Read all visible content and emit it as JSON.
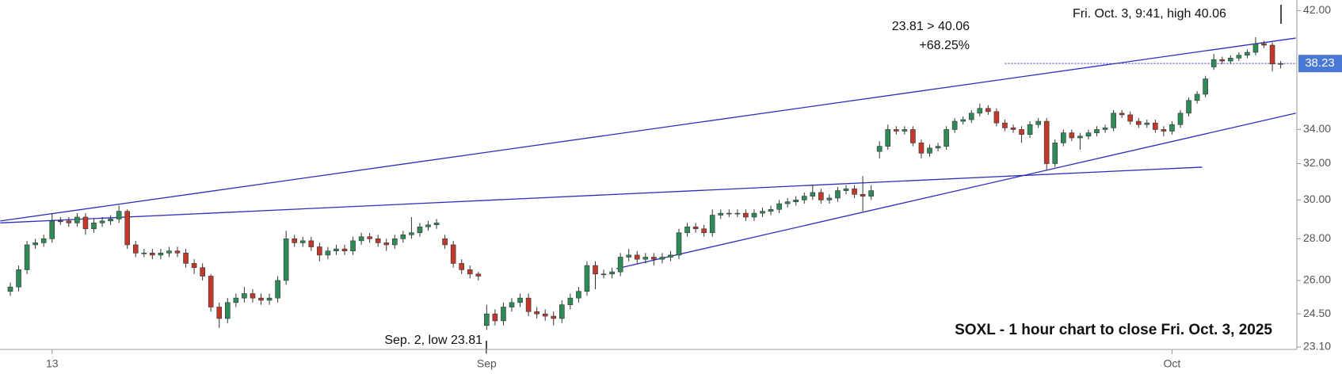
{
  "chart_data": {
    "type": "candlestick",
    "title": "SOXL - 1 hour chart to close Fri. Oct. 3, 2025",
    "log_scale": true,
    "up_color": "#2e8b57",
    "down_color": "#c0392b",
    "line_color": "#2d2dbd",
    "categories": [
      null,
      null,
      null,
      null,
      null,
      "13",
      null,
      null,
      null,
      null,
      null,
      null,
      null,
      null,
      null,
      null,
      null,
      null,
      null,
      null,
      null,
      null,
      null,
      null,
      null,
      null,
      null,
      null,
      null,
      null,
      null,
      null,
      null,
      null,
      null,
      null,
      null,
      null,
      null,
      null,
      null,
      null,
      null,
      null,
      null,
      null,
      null,
      null,
      null,
      null,
      null,
      null,
      null,
      null,
      null,
      null,
      null,
      "Sep",
      null,
      null,
      null,
      null,
      null,
      null,
      null,
      null,
      null,
      null,
      null,
      null,
      null,
      null,
      null,
      null,
      null,
      null,
      null,
      null,
      null,
      null,
      null,
      null,
      null,
      null,
      null,
      null,
      null,
      null,
      null,
      null,
      null,
      null,
      null,
      null,
      null,
      null,
      null,
      null,
      null,
      null,
      null,
      null,
      null,
      null,
      null,
      null,
      null,
      null,
      null,
      null,
      null,
      null,
      null,
      null,
      null,
      null,
      null,
      null,
      null,
      null,
      null,
      null,
      null,
      null,
      null,
      null,
      null,
      null,
      null,
      null,
      null,
      null,
      null,
      null,
      null,
      null,
      null,
      null,
      null,
      "Oct",
      null,
      null,
      null,
      null,
      null,
      null,
      null,
      null,
      null,
      null,
      null,
      null,
      null
    ],
    "open": [
      25.5,
      25.7,
      26.5,
      27.7,
      27.8,
      28.0,
      28.9,
      28.9,
      28.8,
      29.1,
      28.5,
      28.8,
      28.9,
      29.0,
      29.4,
      27.7,
      27.3,
      27.3,
      27.2,
      27.3,
      27.4,
      27.3,
      26.8,
      26.6,
      26.2,
      24.8,
      24.3,
      25.0,
      25.2,
      25.4,
      25.2,
      25.1,
      25.2,
      26.0,
      28.0,
      27.8,
      27.9,
      27.6,
      27.2,
      27.4,
      27.5,
      27.4,
      27.9,
      28.1,
      28.0,
      27.8,
      27.7,
      28.0,
      28.2,
      28.3,
      28.6,
      28.7,
      28.0,
      27.7,
      26.8,
      26.5,
      26.3,
      24.0,
      24.5,
      24.2,
      24.8,
      25.0,
      25.2,
      24.6,
      24.5,
      24.4,
      24.3,
      24.9,
      25.2,
      25.5,
      26.7,
      26.3,
      26.3,
      26.4,
      27.1,
      27.2,
      27.0,
      27.1,
      27.0,
      27.1,
      27.2,
      28.3,
      28.6,
      28.5,
      28.3,
      29.2,
      29.3,
      29.3,
      29.3,
      29.1,
      29.3,
      29.4,
      29.5,
      29.8,
      29.9,
      30.0,
      30.2,
      30.4,
      30.0,
      30.1,
      30.5,
      30.6,
      30.3,
      30.2,
      32.7,
      33.0,
      34.0,
      33.9,
      34.0,
      33.2,
      32.6,
      32.9,
      33.0,
      34.0,
      34.5,
      34.6,
      35.0,
      35.3,
      35.1,
      34.4,
      34.1,
      34.0,
      33.7,
      34.3,
      34.5,
      32.0,
      33.2,
      33.8,
      33.5,
      33.6,
      33.8,
      34.0,
      34.1,
      35.0,
      34.9,
      34.5,
      34.3,
      34.4,
      34.0,
      33.9,
      34.3,
      35.0,
      35.8,
      36.2,
      38.0,
      38.5,
      38.4,
      38.6,
      38.8,
      39.0,
      39.6,
      39.5,
      38.2
    ],
    "high": [
      25.9,
      26.7,
      27.9,
      28.0,
      28.2,
      29.3,
      29.1,
      29.1,
      29.3,
      29.3,
      29.0,
      29.1,
      29.2,
      29.7,
      29.5,
      27.9,
      27.5,
      27.5,
      27.5,
      27.6,
      27.6,
      27.5,
      27.0,
      26.8,
      26.3,
      25.0,
      25.2,
      25.4,
      25.7,
      25.6,
      25.4,
      25.4,
      26.2,
      28.4,
      28.2,
      28.1,
      28.1,
      27.8,
      27.6,
      27.7,
      27.7,
      28.1,
      28.3,
      28.3,
      28.2,
      28.0,
      28.2,
      28.4,
      29.1,
      28.8,
      28.9,
      29.0,
      28.2,
      27.9,
      27.0,
      26.7,
      26.4,
      24.9,
      24.7,
      25.0,
      25.2,
      25.4,
      25.4,
      24.8,
      24.7,
      24.6,
      25.1,
      25.4,
      25.7,
      26.9,
      26.9,
      26.5,
      26.6,
      27.3,
      27.5,
      27.4,
      27.3,
      27.3,
      27.3,
      27.4,
      28.5,
      28.8,
      28.8,
      28.7,
      29.5,
      29.5,
      29.5,
      29.5,
      29.5,
      29.5,
      29.6,
      29.7,
      30.0,
      30.1,
      30.2,
      30.4,
      30.8,
      30.6,
      30.3,
      30.7,
      30.8,
      30.8,
      31.3,
      30.8,
      33.3,
      34.3,
      34.2,
      34.2,
      34.2,
      33.4,
      33.1,
      33.2,
      34.2,
      34.7,
      34.8,
      35.2,
      35.6,
      35.5,
      35.3,
      34.6,
      34.3,
      34.2,
      34.5,
      34.7,
      34.7,
      33.4,
      34.0,
      34.0,
      33.8,
      34.0,
      34.2,
      34.3,
      35.2,
      35.2,
      35.1,
      34.7,
      34.6,
      34.6,
      34.2,
      34.5,
      35.2,
      36.0,
      36.4,
      37.4,
      38.9,
      38.7,
      38.8,
      39.0,
      39.2,
      40.06,
      39.8,
      39.7,
      38.4
    ],
    "low": [
      25.3,
      25.5,
      26.3,
      27.5,
      27.6,
      27.8,
      28.7,
      28.6,
      28.6,
      28.2,
      28.3,
      28.6,
      28.7,
      28.8,
      27.5,
      27.1,
      27.1,
      27.0,
      27.0,
      27.1,
      27.1,
      26.6,
      26.3,
      26.0,
      24.6,
      23.9,
      24.1,
      24.8,
      25.0,
      25.0,
      24.9,
      24.9,
      25.0,
      25.8,
      27.6,
      27.6,
      27.4,
      26.9,
      27.0,
      27.2,
      27.2,
      27.2,
      27.7,
      27.8,
      27.6,
      27.4,
      27.5,
      27.8,
      28.0,
      28.1,
      28.4,
      28.5,
      27.5,
      26.6,
      26.3,
      26.1,
      26.0,
      23.81,
      24.0,
      24.0,
      24.6,
      24.8,
      24.4,
      24.3,
      24.2,
      24.0,
      24.1,
      24.7,
      25.0,
      25.3,
      25.6,
      26.1,
      26.1,
      26.2,
      26.9,
      26.8,
      26.8,
      26.7,
      26.8,
      26.9,
      27.0,
      28.1,
      28.3,
      28.1,
      28.1,
      29.0,
      29.1,
      29.1,
      28.9,
      28.9,
      29.1,
      29.2,
      29.3,
      29.6,
      29.7,
      29.8,
      30.0,
      29.8,
      29.8,
      29.9,
      30.3,
      30.1,
      29.4,
      30.0,
      32.3,
      32.8,
      33.7,
      33.7,
      33.0,
      32.3,
      32.4,
      32.7,
      32.8,
      33.8,
      34.3,
      34.4,
      34.8,
      34.9,
      34.2,
      33.9,
      33.8,
      33.2,
      33.5,
      34.1,
      31.6,
      31.8,
      33.0,
      33.3,
      32.8,
      33.4,
      33.6,
      33.8,
      33.9,
      34.7,
      34.3,
      34.1,
      34.1,
      33.8,
      33.6,
      33.7,
      34.1,
      34.8,
      35.6,
      36.0,
      37.8,
      38.2,
      38.2,
      38.4,
      38.6,
      38.8,
      39.3,
      37.7,
      37.9
    ],
    "close": [
      25.7,
      26.5,
      27.7,
      27.8,
      28.0,
      28.9,
      28.9,
      28.8,
      29.1,
      28.5,
      28.8,
      28.9,
      29.0,
      29.4,
      27.7,
      27.3,
      27.3,
      27.2,
      27.3,
      27.4,
      27.3,
      26.8,
      26.6,
      26.2,
      24.8,
      24.3,
      25.0,
      25.2,
      25.4,
      25.2,
      25.1,
      25.2,
      26.0,
      28.0,
      27.8,
      27.9,
      27.6,
      27.2,
      27.4,
      27.5,
      27.4,
      27.9,
      28.1,
      28.0,
      27.8,
      27.7,
      28.0,
      28.2,
      28.3,
      28.6,
      28.7,
      28.8,
      27.7,
      26.8,
      26.5,
      26.3,
      26.2,
      24.5,
      24.2,
      24.8,
      25.0,
      25.2,
      24.6,
      24.5,
      24.4,
      24.3,
      24.9,
      25.2,
      25.5,
      26.7,
      26.3,
      26.3,
      26.4,
      27.1,
      27.2,
      27.0,
      27.1,
      27.0,
      27.1,
      27.2,
      28.3,
      28.6,
      28.5,
      28.3,
      29.2,
      29.3,
      29.3,
      29.3,
      29.1,
      29.3,
      29.4,
      29.5,
      29.8,
      29.9,
      30.0,
      30.2,
      30.4,
      30.0,
      30.1,
      30.5,
      30.6,
      30.3,
      30.2,
      30.5,
      33.0,
      34.0,
      33.9,
      34.0,
      33.2,
      32.6,
      32.9,
      33.0,
      34.0,
      34.5,
      34.6,
      35.0,
      35.3,
      35.1,
      34.4,
      34.1,
      34.0,
      33.7,
      34.3,
      34.5,
      32.0,
      33.2,
      33.8,
      33.5,
      33.6,
      33.8,
      34.0,
      34.1,
      35.0,
      34.9,
      34.5,
      34.3,
      34.4,
      34.0,
      33.9,
      34.3,
      35.0,
      35.8,
      36.2,
      37.2,
      38.5,
      38.4,
      38.6,
      38.8,
      39.0,
      39.6,
      39.5,
      38.2,
      38.23
    ],
    "ylim": [
      23,
      42.8
    ],
    "yticks": [
      {
        "value": 23.1,
        "label": "23.10"
      },
      {
        "value": 24.5,
        "label": "24.50"
      },
      {
        "value": 26,
        "label": "26.00"
      },
      {
        "value": 28,
        "label": "28.00"
      },
      {
        "value": 30,
        "label": "30.00"
      },
      {
        "value": 32,
        "label": "32.00"
      },
      {
        "value": 34,
        "label": "34.00"
      },
      {
        "value": 42,
        "label": "42.00"
      }
    ],
    "last_price": 38.23,
    "trendlines": [
      {
        "x": [
          -1.2,
          153.8
        ],
        "y": [
          28.9,
          40.0
        ]
      },
      {
        "x": [
          -1.2,
          142.6
        ],
        "y": [
          28.8,
          31.8
        ]
      },
      {
        "x": [
          72.5,
          153.8
        ],
        "y": [
          26.55,
          35.0
        ]
      }
    ],
    "annotations": {
      "range": "23.81 > 40.06",
      "change": "+68.25%",
      "high": "Fri. Oct. 3, 9:41, high 40.06",
      "low": "Sep. 2, low 23.81"
    }
  }
}
